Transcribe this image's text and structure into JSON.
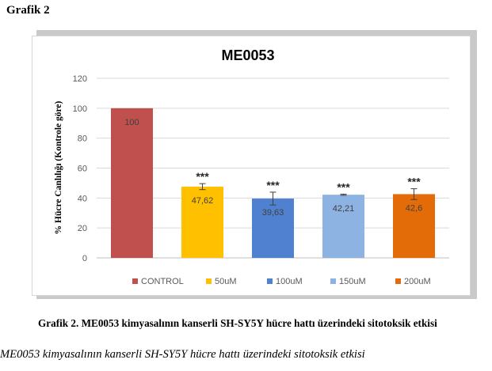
{
  "page": {
    "heading": "Grafik 2",
    "caption": "Grafik 2. ME0053 kimyasalının kanserli SH-SY5Y hücre hattı üzerindeki sitotoksik etkisi",
    "subcaption": "ME0053 kimyasalının kanserli SH-SY5Y hücre hattı üzerindeki sitotoksik etkisi"
  },
  "chart_data": {
    "type": "bar",
    "title": "ME0053",
    "ylabel": "% Hücre Canlılığı (Kontrole göre)",
    "xlabel": "",
    "ylim": [
      0,
      120
    ],
    "yticks": [
      0,
      20,
      40,
      60,
      80,
      100,
      120
    ],
    "grid": true,
    "legend_position": "bottom",
    "categories": [
      "CONTROL",
      "50uM",
      "100uM",
      "150uM",
      "200uM"
    ],
    "values": [
      100,
      47.62,
      39.63,
      42.21,
      42.6
    ],
    "value_labels": [
      "100",
      "47,62",
      "39,63",
      "42,21",
      "42,6"
    ],
    "errors": [
      0,
      2.0,
      4.3,
      0.4,
      3.6
    ],
    "significance": [
      "",
      "***",
      "***",
      "***",
      "***"
    ],
    "colors": [
      "#c0504d",
      "#ffc000",
      "#4f81d0",
      "#8db3e2",
      "#e36c09"
    ]
  }
}
